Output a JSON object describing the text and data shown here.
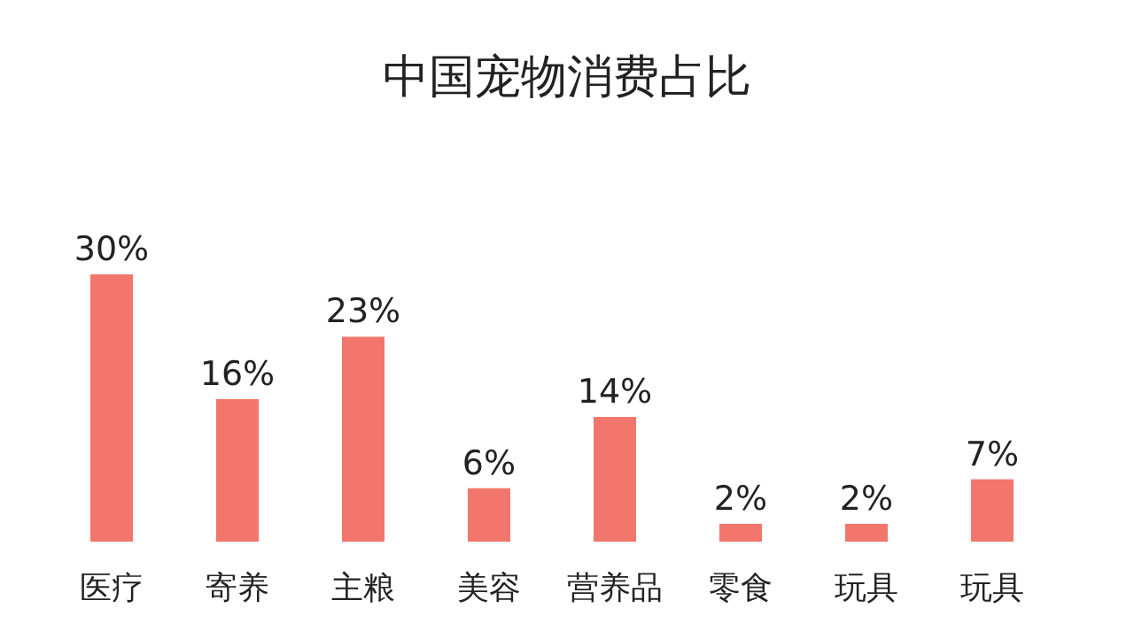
{
  "chart_data": {
    "type": "bar",
    "title": "中国宠物消费占比",
    "categories": [
      "医疗",
      "寄养",
      "主粮",
      "美容",
      "营养品",
      "零食",
      "玩具",
      "玩具"
    ],
    "values": [
      30,
      16,
      23,
      6,
      14,
      2,
      2,
      7
    ],
    "color": "#f2766b",
    "data_labels": true,
    "value_labels": [
      "30%",
      "16%",
      "23%",
      "6%",
      "14%",
      "2%",
      "2%",
      "7%"
    ]
  }
}
